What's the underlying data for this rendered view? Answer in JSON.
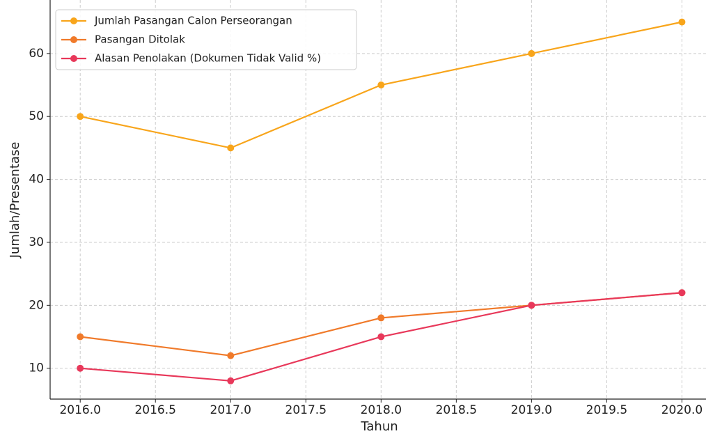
{
  "chart_data": {
    "type": "line",
    "x_label": "Tahun",
    "y_label": "Jumlah/Presentase",
    "x": [
      2016,
      2017,
      2018,
      2019,
      2020
    ],
    "series": [
      {
        "name": "Jumlah Pasangan Calon Perseorangan",
        "color": "#f8a51b",
        "values": [
          50,
          45,
          55,
          60,
          65
        ]
      },
      {
        "name": "Pasangan Ditolak",
        "color": "#f07a2a",
        "values": [
          15,
          12,
          18,
          20,
          22
        ]
      },
      {
        "name": "Alasan Penolakan (Dokumen Tidak Valid %)",
        "color": "#e8385a",
        "values": [
          10,
          8,
          15,
          20,
          22
        ]
      }
    ],
    "xlim": [
      2015.8,
      2020.16
    ],
    "xticks": [
      {
        "value": 2016,
        "label": "2016.0"
      },
      {
        "value": 2016.5,
        "label": "2016.5"
      },
      {
        "value": 2017,
        "label": "2017.0"
      },
      {
        "value": 2017.5,
        "label": "2017.5"
      },
      {
        "value": 2018,
        "label": "2018.0"
      },
      {
        "value": 2018.5,
        "label": "2018.5"
      },
      {
        "value": 2019,
        "label": "2019.0"
      },
      {
        "value": 2019.5,
        "label": "2019.5"
      },
      {
        "value": 2020,
        "label": "2020.0"
      }
    ],
    "ylim": [
      5.1,
      68.5
    ],
    "yticks": [
      10,
      20,
      30,
      40,
      50,
      60
    ],
    "grid": true,
    "legend": "upper left"
  }
}
